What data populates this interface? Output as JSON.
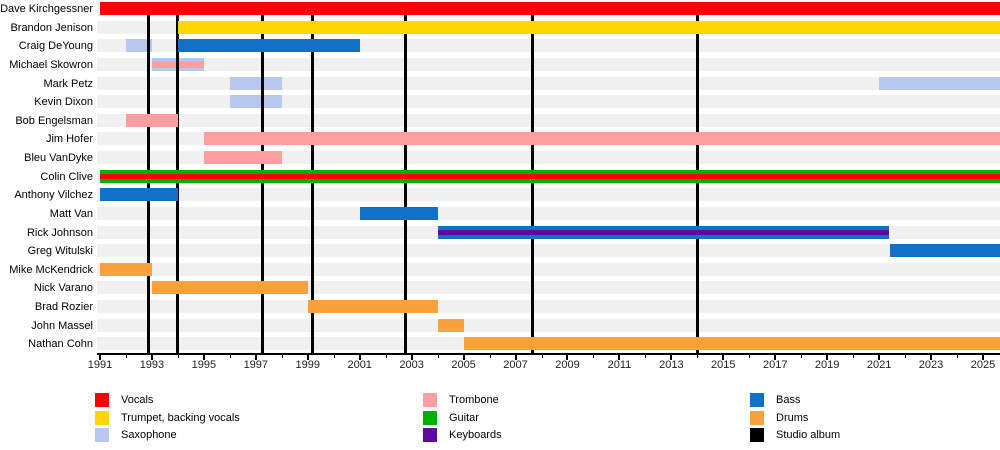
{
  "chart_data": {
    "type": "bar",
    "subtype": "band-membership-timeline (gantt)",
    "title": "",
    "x_axis": {
      "min_year": 1991,
      "max_year": 2025.65,
      "label_years": [
        1991,
        1993,
        1995,
        1997,
        1999,
        2001,
        2003,
        2005,
        2007,
        2009,
        2011,
        2013,
        2015,
        2017,
        2019,
        2021,
        2023,
        2025
      ],
      "minor_tick_years": [
        1992,
        1994,
        1996,
        1998,
        2000,
        2002,
        2004,
        2006,
        2008,
        2010,
        2012,
        2014,
        2016,
        2018,
        2020,
        2022,
        2024
      ],
      "grid": false
    },
    "present_end": "present",
    "members": [
      {
        "name": "Dave Kirchgessner",
        "bars": [
          {
            "start": 1991,
            "end": "present",
            "role": "vocals"
          }
        ]
      },
      {
        "name": "Brandon Jenison",
        "bars": [
          {
            "start": 1994,
            "end": "present",
            "role": "trumpet"
          }
        ]
      },
      {
        "name": "Craig DeYoung",
        "bars": [
          {
            "start": 1992,
            "end": 1993,
            "role": "saxophone"
          },
          {
            "start": 1994,
            "end": 2001,
            "role": "bass"
          }
        ]
      },
      {
        "name": "Michael Skowron",
        "bars": [
          {
            "start": 1993,
            "end": 1995,
            "role": "saxophone",
            "stripe": "trombone"
          }
        ]
      },
      {
        "name": "Mark Petz",
        "bars": [
          {
            "start": 1996,
            "end": 1998,
            "role": "saxophone"
          },
          {
            "start": 2021,
            "end": "present",
            "role": "saxophone"
          }
        ]
      },
      {
        "name": "Kevin Dixon",
        "bars": [
          {
            "start": 1996,
            "end": 1998,
            "role": "saxophone"
          }
        ]
      },
      {
        "name": "Bob Engelsman",
        "bars": [
          {
            "start": 1992,
            "end": 1994,
            "role": "trombone"
          }
        ]
      },
      {
        "name": "Jim Hofer",
        "bars": [
          {
            "start": 1995,
            "end": "present",
            "role": "trombone"
          }
        ]
      },
      {
        "name": "Bleu VanDyke",
        "bars": [
          {
            "start": 1995,
            "end": 1998,
            "role": "trombone"
          }
        ]
      },
      {
        "name": "Colin Clive",
        "bars": [
          {
            "start": 1991,
            "end": "present",
            "role": "guitar",
            "stripe": "vocals"
          }
        ]
      },
      {
        "name": "Anthony Vilchez",
        "bars": [
          {
            "start": 1991,
            "end": 1994,
            "role": "bass"
          }
        ]
      },
      {
        "name": "Matt Van",
        "bars": [
          {
            "start": 2001,
            "end": 2004,
            "role": "bass"
          }
        ]
      },
      {
        "name": "Rick Johnson",
        "bars": [
          {
            "start": 2004,
            "end": 2021.4,
            "role": "bass",
            "stripe": "keyboards"
          }
        ]
      },
      {
        "name": "Greg Witulski",
        "bars": [
          {
            "start": 2021.4,
            "end": "present",
            "role": "bass"
          }
        ]
      },
      {
        "name": "Mike McKendrick",
        "bars": [
          {
            "start": 1991,
            "end": 1993,
            "role": "drums"
          }
        ]
      },
      {
        "name": "Nick Varano",
        "bars": [
          {
            "start": 1993,
            "end": 1999,
            "role": "drums"
          }
        ]
      },
      {
        "name": "Brad Rozier",
        "bars": [
          {
            "start": 1999,
            "end": 2004,
            "role": "drums"
          }
        ]
      },
      {
        "name": "John Massel",
        "bars": [
          {
            "start": 2004,
            "end": 2005,
            "role": "drums"
          }
        ]
      },
      {
        "name": "Nathan Cohn",
        "bars": [
          {
            "start": 2005,
            "end": "present",
            "role": "drums"
          }
        ]
      }
    ],
    "studio_albums": {
      "label": "Studio album",
      "years": [
        1992.85,
        1994.0,
        1997.25,
        1999.2,
        2002.75,
        2007.65,
        2014.0
      ]
    },
    "legend": {
      "columns": [
        [
          {
            "label": "Vocals",
            "color": "vocals"
          },
          {
            "label": "Trumpet, backing vocals",
            "color": "trumpet"
          },
          {
            "label": "Saxophone",
            "color": "saxophone"
          }
        ],
        [
          {
            "label": "Trombone",
            "color": "trombone"
          },
          {
            "label": "Guitar",
            "color": "guitar"
          },
          {
            "label": "Keyboards",
            "color": "keyboards"
          }
        ],
        [
          {
            "label": "Bass",
            "color": "bass"
          },
          {
            "label": "Drums",
            "color": "drums"
          },
          {
            "label": "Studio album",
            "color": "album"
          }
        ]
      ]
    },
    "colors": {
      "vocals": "#FF0000",
      "trumpet": "#FFD700",
      "saxophone": "#B7C8F0",
      "trombone": "#FF9E9E",
      "guitar": "#00AF00",
      "keyboards": "#5C0C9C",
      "bass": "#1170C8",
      "drums": "#F9A23C",
      "album": "#000000",
      "row_band": "#F0F0F0"
    }
  }
}
